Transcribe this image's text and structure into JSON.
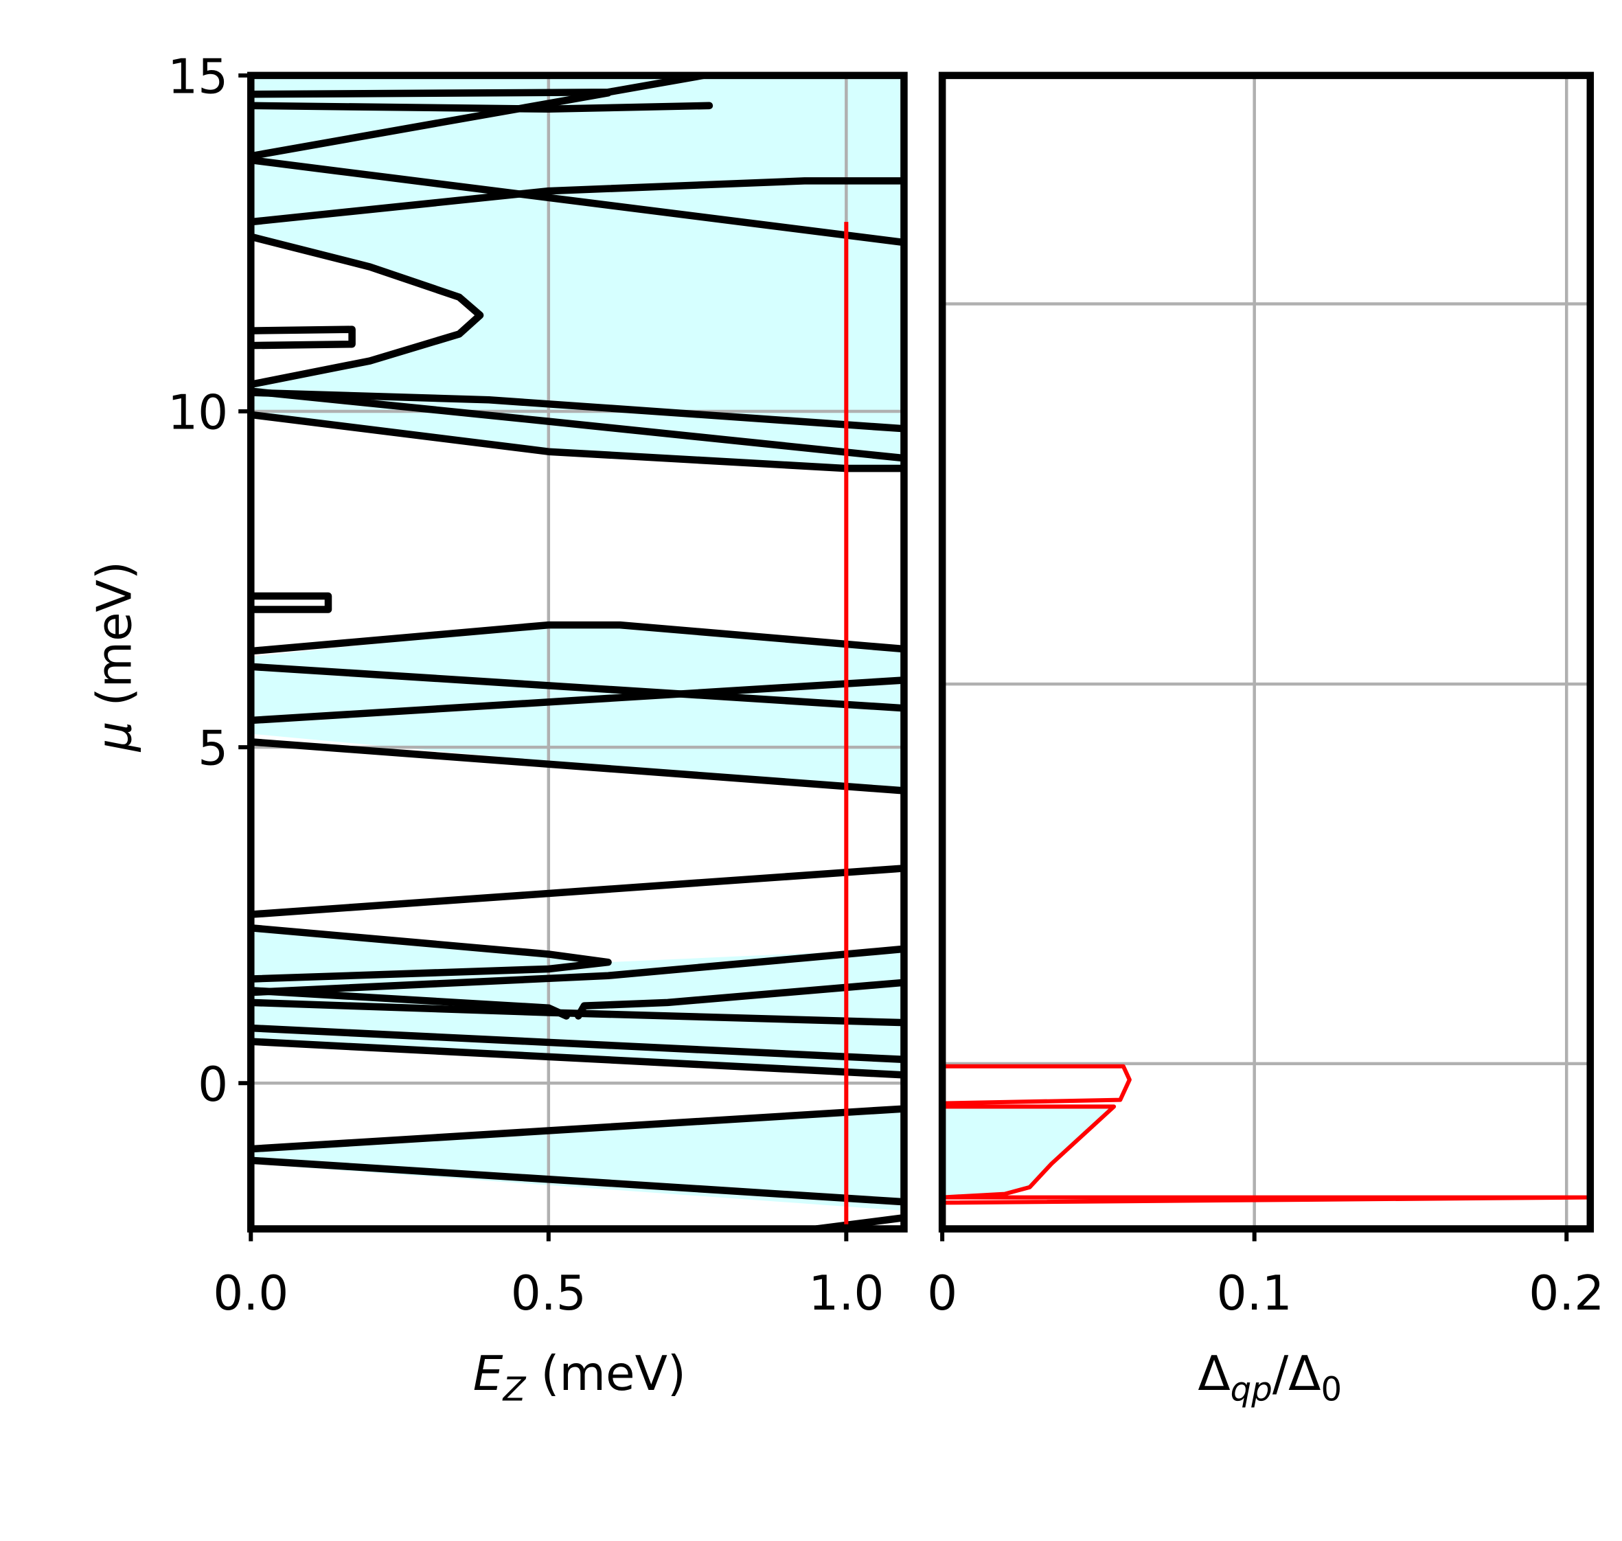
{
  "chart_data": [
    {
      "type": "line",
      "xlabel": [
        "E",
        "Z",
        " (meV)"
      ],
      "ylabel": [
        "μ",
        " (meV)"
      ],
      "xlim": [
        0,
        1.097
      ],
      "ylim": [
        -2.17,
        15
      ],
      "xticks": [
        {
          "value": 0,
          "label": "0.0"
        },
        0.5,
        {
          "value": 1,
          "label": "1.0"
        }
      ],
      "yticks": [
        0,
        5,
        10,
        15
      ],
      "grid": true,
      "line_color": "#000000",
      "fill_color": "#d6ffff",
      "fills": [
        {
          "x": [
            0,
            1.1,
            1.1,
            0.5,
            0,
            0,
            0.2,
            0.35,
            0.385,
            0.35,
            0.2,
            0
          ],
          "y": [
            15,
            15,
            9.1,
            9.4,
            9.95,
            10.4,
            10.75,
            11.15,
            11.43,
            11.7,
            12.15,
            12.6
          ]
        },
        {
          "x": [
            0,
            0.5,
            0.62,
            1.1,
            1.1,
            0
          ],
          "y": [
            6.35,
            6.8,
            6.8,
            6.5,
            4.3,
            5.2
          ]
        },
        {
          "x": [
            0,
            0.5,
            0.6,
            1.1,
            1.1,
            0,
            0
          ],
          "y": [
            2.31,
            1.92,
            1.8,
            2.0,
            0.15,
            0.6,
            1.35
          ]
        },
        {
          "x": [
            0,
            1.1,
            1.1,
            0
          ],
          "y": [
            -1.0,
            -0.4,
            -1.9,
            -1.2
          ]
        }
      ],
      "boundaries": [
        {
          "x": [
            0,
            0.6,
            0.76
          ],
          "y": [
            14.72,
            14.75,
            15
          ]
        },
        {
          "x": [
            0,
            0.5,
            0.77
          ],
          "y": [
            14.55,
            14.5,
            14.55
          ]
        },
        {
          "x": [
            0,
            0.6
          ],
          "y": [
            13.8,
            14.74
          ]
        },
        {
          "x": [
            0,
            1.1
          ],
          "y": [
            13.74,
            12.51
          ]
        },
        {
          "x": [
            0,
            0.5,
            0.93,
            1.1
          ],
          "y": [
            12.82,
            13.28,
            13.43,
            13.43
          ]
        },
        {
          "x": [
            0,
            0.2,
            0.35,
            0.385,
            0.35,
            0.2,
            0
          ],
          "y": [
            12.6,
            12.15,
            11.7,
            11.43,
            11.15,
            10.75,
            10.4
          ]
        },
        {
          "x": [
            0,
            0.17,
            0.17,
            0
          ],
          "y": [
            11.2,
            11.22,
            11.0,
            10.98
          ]
        },
        {
          "x": [
            0,
            0.4,
            1.1
          ],
          "y": [
            10.28,
            10.17,
            9.74
          ]
        },
        {
          "x": [
            0,
            0.5,
            1.1
          ],
          "y": [
            10.3,
            9.85,
            9.3
          ]
        },
        {
          "x": [
            0,
            0.5,
            1.0,
            1.1
          ],
          "y": [
            9.95,
            9.4,
            9.15,
            9.15
          ]
        },
        {
          "x": [
            0,
            0.13,
            0.13,
            0
          ],
          "y": [
            7.25,
            7.25,
            7.05,
            7.05
          ]
        },
        {
          "x": [
            0,
            0.5,
            0.62,
            1.1
          ],
          "y": [
            6.43,
            6.82,
            6.82,
            6.46
          ]
        },
        {
          "x": [
            0,
            1.1
          ],
          "y": [
            6.2,
            5.58
          ]
        },
        {
          "x": [
            0,
            1.1
          ],
          "y": [
            5.4,
            6.0
          ]
        },
        {
          "x": [
            0,
            1.1
          ],
          "y": [
            5.08,
            4.35
          ]
        },
        {
          "x": [
            0,
            1.1
          ],
          "y": [
            2.51,
            3.2
          ]
        },
        {
          "x": [
            0,
            0.5,
            0.6,
            0.5,
            0
          ],
          "y": [
            2.31,
            1.92,
            1.8,
            1.7,
            1.55
          ]
        },
        {
          "x": [
            0,
            0.6,
            1.1
          ],
          "y": [
            1.35,
            1.6,
            2.0
          ]
        },
        {
          "x": [
            0,
            0.5,
            0.53
          ],
          "y": [
            1.38,
            1.12,
            1.0
          ]
        },
        {
          "x": [
            0.55,
            0.56,
            0.7,
            1.1
          ],
          "y": [
            1.0,
            1.15,
            1.2,
            1.5
          ]
        },
        {
          "x": [
            0,
            0.5,
            1.1
          ],
          "y": [
            1.2,
            1.05,
            0.9
          ]
        },
        {
          "x": [
            0,
            1.1
          ],
          "y": [
            0.82,
            0.35
          ]
        },
        {
          "x": [
            0,
            1.1
          ],
          "y": [
            0.62,
            0.12
          ]
        },
        {
          "x": [
            0,
            1.1
          ],
          "y": [
            -0.98,
            -0.38
          ]
        },
        {
          "x": [
            0,
            1.1
          ],
          "y": [
            -1.15,
            -1.77
          ]
        },
        {
          "x": [
            0.95,
            1.1
          ],
          "y": [
            -2.17,
            -2.0
          ]
        }
      ],
      "series": [
        {
          "color": "#ff0000",
          "x": [
            1.0,
            1.0
          ],
          "y": [
            -2.1,
            12.82
          ]
        }
      ]
    },
    {
      "type": "line",
      "xlabel": [
        "Δ",
        "qp",
        "/Δ",
        "0"
      ],
      "xlim": [
        0,
        0.2076
      ],
      "ylim": [
        -2.17,
        15
      ],
      "xticks": [
        0,
        0.1,
        0.2
      ],
      "yticks": [
        0.29,
        5.94,
        11.6
      ],
      "grid": true,
      "line_color": "#000000",
      "fill_color": "#d6ffff",
      "fills": [
        {
          "x": [
            0,
            0.055,
            0.035,
            0.028,
            0.02,
            0
          ],
          "y": [
            -0.35,
            -0.35,
            -1.2,
            -1.55,
            -1.65,
            -1.7
          ]
        }
      ],
      "boundaries": [],
      "series": [
        {
          "color": "#ff0000",
          "x": [
            0,
            0.058,
            0.06,
            0.057,
            0
          ],
          "y": [
            0.25,
            0.25,
            0.05,
            -0.25,
            -0.3
          ]
        },
        {
          "color": "#ff0000",
          "x": [
            0,
            0.055,
            0.035,
            0.028,
            0.02,
            0,
            0.2076,
            0
          ],
          "y": [
            -0.35,
            -0.35,
            -1.2,
            -1.55,
            -1.65,
            -1.7,
            -1.7,
            -1.78
          ]
        }
      ]
    }
  ]
}
